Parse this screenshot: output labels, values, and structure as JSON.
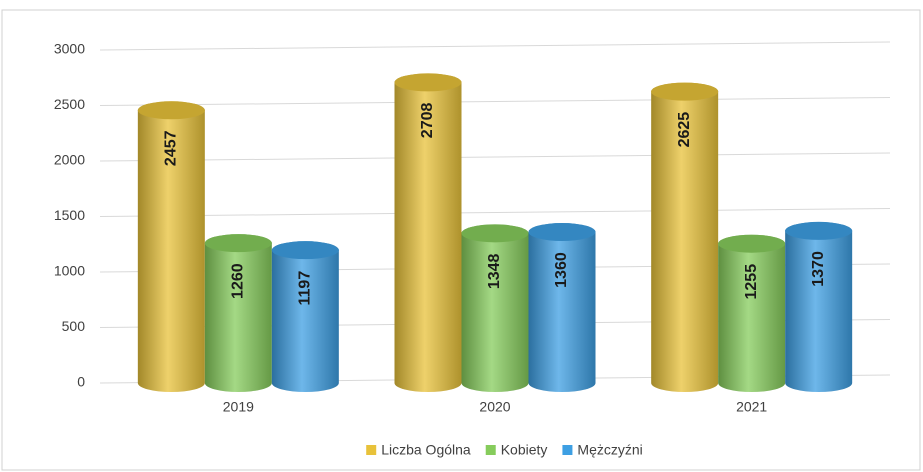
{
  "chart_data": {
    "type": "bar",
    "categories": [
      "2019",
      "2020",
      "2021"
    ],
    "series": [
      {
        "name": "Liczba Ogólna",
        "color": "#e8c23a",
        "values": [
          2457,
          2708,
          2625
        ]
      },
      {
        "name": "Kobiety",
        "color": "#86cc5c",
        "values": [
          1260,
          1348,
          1255
        ]
      },
      {
        "name": "Mężczyźni",
        "color": "#3d9fe3",
        "values": [
          1197,
          1360,
          1370
        ]
      }
    ],
    "ylim": [
      0,
      3000
    ],
    "yticks": [
      0,
      500,
      1000,
      1500,
      2000,
      2500,
      3000
    ],
    "grid": true,
    "legend": "bottom"
  }
}
